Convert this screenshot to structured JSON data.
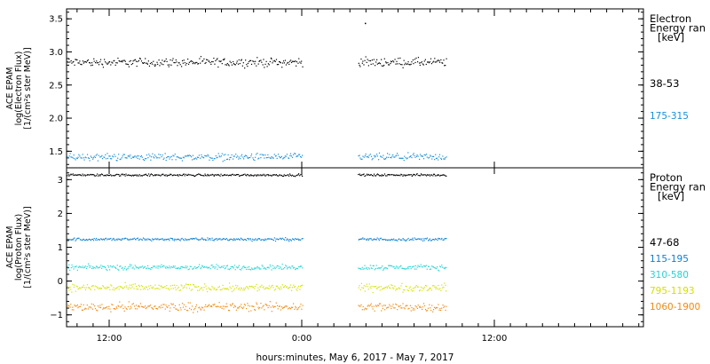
{
  "chart_data": {
    "type": "scatter",
    "xlabel": "hours:minutes, May  6, 2017 - May  7, 2017",
    "x_ticks": [
      "12:00",
      "0:00",
      "12:00"
    ],
    "data_gap": {
      "start": "0:00 May 7",
      "end": "04:00 May 7"
    },
    "panels": [
      {
        "name": "electron",
        "ylabel_lines": [
          "ACE EPAM",
          "log(Electron Flux)",
          "[1/(cm²s ster MeV)]"
        ],
        "ylim": [
          1.25,
          3.65
        ],
        "y_ticks": [
          "1.5",
          "2.0",
          "2.5",
          "3.0",
          "3.5"
        ],
        "legend_title": [
          "Electron",
          "Energy ran",
          "[keV]"
        ],
        "series": [
          {
            "name": "38-53",
            "color": "#000000",
            "mean": 2.85,
            "spread": 0.06
          },
          {
            "name": "175-315",
            "color": "#1a8fd8",
            "mean": 1.42,
            "spread": 0.05
          }
        ],
        "outliers": [
          {
            "x": "03:50 May 7",
            "y": 3.44
          }
        ]
      },
      {
        "name": "proton",
        "ylabel_lines": [
          "ACE EPAM",
          "log(Proton Flux)",
          "[1/(cm²s ster MeV)]"
        ],
        "ylim": [
          -1.35,
          3.35
        ],
        "y_ticks": [
          "−1",
          "0",
          "1",
          "2",
          "3"
        ],
        "legend_title": [
          "Proton",
          "Energy ran",
          "[keV]"
        ],
        "series": [
          {
            "name": "47-68",
            "color": "#000000",
            "mean": 3.15,
            "spread": 0.03
          },
          {
            "name": "115-195",
            "color": "#0b7fd0",
            "mean": 1.25,
            "spread": 0.04
          },
          {
            "name": "310-580",
            "color": "#22d3d3",
            "mean": 0.42,
            "spread": 0.07
          },
          {
            "name": "795-1193",
            "color": "#d4e000",
            "mean": -0.18,
            "spread": 0.1
          },
          {
            "name": "1060-1900",
            "color": "#f08a10",
            "mean": -0.75,
            "spread": 0.12
          }
        ]
      }
    ]
  }
}
